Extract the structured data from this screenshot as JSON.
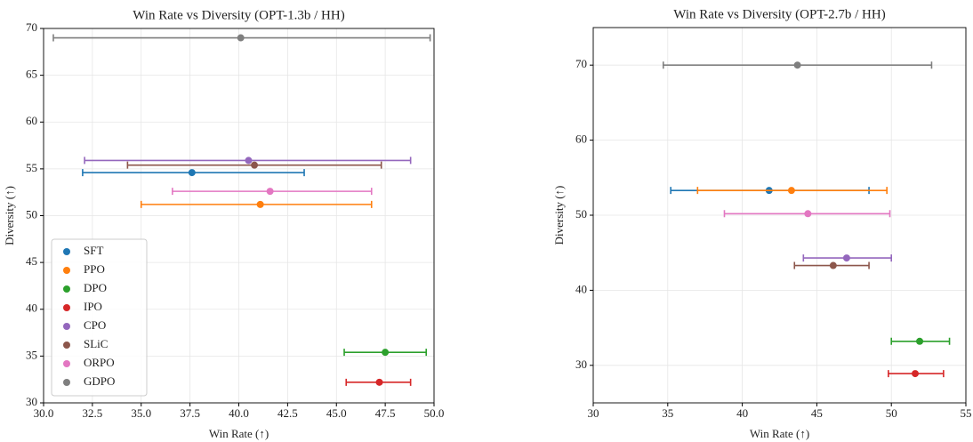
{
  "chart_data": [
    {
      "type": "scatter",
      "title": "Win Rate vs Diversity (OPT-1.3b / HH)",
      "x_label": "Win Rate (↑)",
      "y_label": "Diversity (↑)",
      "xlim": [
        30,
        50
      ],
      "ylim": [
        30,
        70
      ],
      "xticks": [
        {
          "value": 30,
          "label": "30.0"
        },
        32.5,
        {
          "value": 35,
          "label": "35.0"
        },
        37.5,
        {
          "value": 40,
          "label": "40.0"
        },
        42.5,
        {
          "value": 45,
          "label": "45.0"
        },
        47.5,
        {
          "value": 50,
          "label": "50.0"
        }
      ],
      "yticks": [
        30,
        35,
        40,
        45,
        50,
        55,
        60,
        65,
        70
      ],
      "grid": true,
      "legend": "lower left",
      "series": [
        {
          "name": "SFT",
          "color": "#1f77b4",
          "x": [
            37.6
          ],
          "values": [
            54.6
          ],
          "xerr": [
            5.6,
            5.75
          ]
        },
        {
          "name": "PPO",
          "color": "#ff7f0e",
          "x": [
            41.1
          ],
          "values": [
            51.2
          ],
          "xerr": [
            6.1,
            5.7
          ]
        },
        {
          "name": "DPO",
          "color": "#2ca02c",
          "x": [
            47.5
          ],
          "values": [
            35.4
          ],
          "xerr": [
            2.1,
            2.1
          ]
        },
        {
          "name": "IPO",
          "color": "#d62728",
          "x": [
            47.2
          ],
          "values": [
            32.2
          ],
          "xerr": [
            1.7,
            1.6
          ]
        },
        {
          "name": "CPO",
          "color": "#9467bd",
          "x": [
            40.5
          ],
          "values": [
            55.9
          ],
          "xerr": [
            8.4,
            8.3
          ]
        },
        {
          "name": "SLiC",
          "color": "#8c564b",
          "x": [
            40.8
          ],
          "values": [
            55.4
          ],
          "xerr": [
            6.5,
            6.5
          ]
        },
        {
          "name": "ORPO",
          "color": "#e377c2",
          "x": [
            41.6
          ],
          "values": [
            52.6
          ],
          "xerr": [
            5.0,
            5.2
          ]
        },
        {
          "name": "GDPO",
          "color": "#7f7f7f",
          "x": [
            40.1
          ],
          "values": [
            69.0
          ],
          "xerr": [
            9.6,
            9.7
          ]
        }
      ]
    },
    {
      "type": "scatter",
      "title": "Win Rate vs Diversity (OPT-2.7b / HH)",
      "x_label": "Win Rate (↑)",
      "y_label": "Diversity (↑)",
      "xlim": [
        30,
        55
      ],
      "ylim": [
        25,
        75
      ],
      "xticks": [
        30,
        35,
        40,
        45,
        50,
        55
      ],
      "yticks": [
        30,
        40,
        50,
        60,
        70
      ],
      "grid": true,
      "series": [
        {
          "color": "#1f77b4",
          "x": [
            41.8
          ],
          "values": [
            53.3
          ],
          "xerr": [
            6.6,
            6.7
          ]
        },
        {
          "color": "#ff7f0e",
          "x": [
            43.3
          ],
          "values": [
            53.3
          ],
          "xerr": [
            6.3,
            6.4
          ]
        },
        {
          "color": "#2ca02c",
          "x": [
            51.9
          ],
          "values": [
            33.2
          ],
          "xerr": [
            1.9,
            2.0
          ]
        },
        {
          "color": "#d62728",
          "x": [
            51.6
          ],
          "values": [
            28.9
          ],
          "xerr": [
            1.8,
            1.9
          ]
        },
        {
          "color": "#9467bd",
          "x": [
            47.0
          ],
          "values": [
            44.3
          ],
          "xerr": [
            2.9,
            3.0
          ]
        },
        {
          "color": "#8c564b",
          "x": [
            46.1
          ],
          "values": [
            43.3
          ],
          "xerr": [
            2.6,
            2.4
          ]
        },
        {
          "color": "#e377c2",
          "x": [
            44.4
          ],
          "values": [
            50.2
          ],
          "xerr": [
            5.6,
            5.5
          ]
        },
        {
          "color": "#7f7f7f",
          "x": [
            43.7
          ],
          "values": [
            70.0
          ],
          "xerr": [
            9.0,
            9.0
          ]
        }
      ]
    }
  ]
}
